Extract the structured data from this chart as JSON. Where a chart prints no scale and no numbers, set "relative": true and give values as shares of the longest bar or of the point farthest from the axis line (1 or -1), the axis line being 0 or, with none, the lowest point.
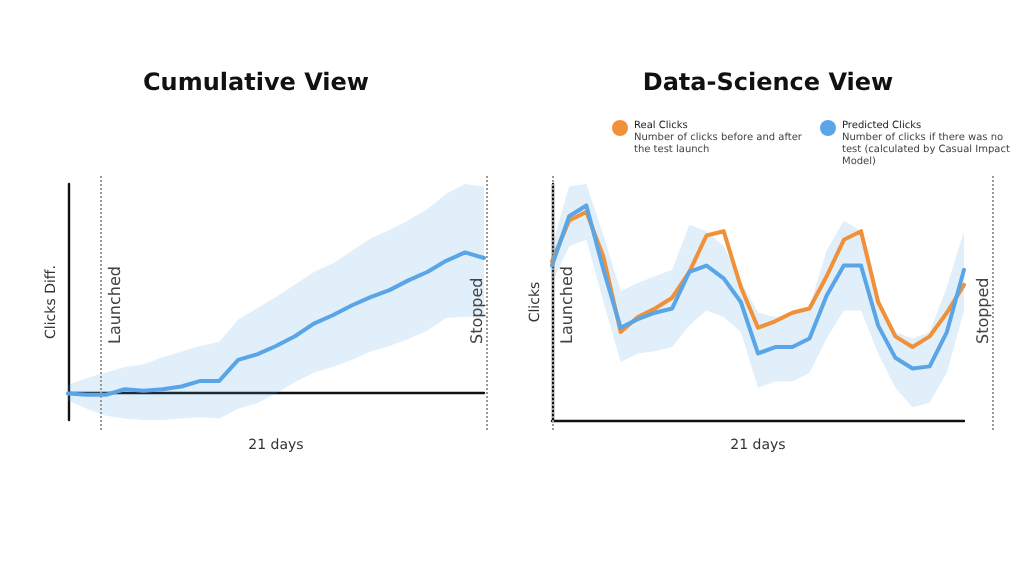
{
  "chart_data": [
    {
      "type": "line",
      "title": "Cumulative View",
      "xlabel": "21 days",
      "ylabel": "Clicks Diff.",
      "relative": true,
      "marker": "none",
      "line_style": "solid",
      "grid": false,
      "legend": false,
      "annotations": [
        "Launched",
        "Stopped"
      ],
      "categories": [
        null,
        null,
        null,
        null,
        null,
        null,
        null,
        null,
        null,
        null,
        null,
        null,
        null,
        null,
        null,
        null,
        null,
        null,
        null,
        null,
        null,
        null,
        null
      ],
      "series": [
        {
          "color": "#5aa5e6",
          "values": [
            -0.01,
            -0.02,
            -0.02,
            0.02,
            0.01,
            0.02,
            0.04,
            0.08,
            0.08,
            0.23,
            0.27,
            0.33,
            0.4,
            0.49,
            0.55,
            0.62,
            0.68,
            0.73,
            0.8,
            0.86,
            0.94,
            1.0,
            0.96
          ],
          "lower": [
            -0.06,
            -0.12,
            -0.17,
            -0.19,
            -0.2,
            -0.2,
            -0.19,
            -0.18,
            -0.19,
            -0.12,
            -0.08,
            -0.01,
            0.07,
            0.14,
            0.18,
            0.23,
            0.29,
            0.33,
            0.38,
            0.44,
            0.53,
            0.54,
            0.53
          ],
          "upper": [
            0.05,
            0.1,
            0.14,
            0.18,
            0.2,
            0.25,
            0.29,
            0.33,
            0.36,
            0.52,
            0.6,
            0.68,
            0.77,
            0.86,
            0.92,
            1.01,
            1.1,
            1.16,
            1.23,
            1.31,
            1.42,
            1.49,
            1.47
          ]
        }
      ]
    },
    {
      "type": "line",
      "title": "Data-Science View",
      "xlabel": "21 days",
      "ylabel": "Clicks",
      "relative": true,
      "marker": "none",
      "line_style": "solid",
      "grid": false,
      "legend": "top right",
      "annotations": [
        "Launched",
        "Stopped",
        "Number of clicks before and after the test launch",
        "Number of clicks if there was no test (calculated by Casual Impact Model)"
      ],
      "categories": [
        null,
        null,
        null,
        null,
        null,
        null,
        null,
        null,
        null,
        null,
        null,
        null,
        null,
        null,
        null,
        null,
        null,
        null,
        null,
        null,
        null,
        null,
        null,
        null,
        null
      ],
      "series": [
        {
          "name": "Real Clicks",
          "color": "#f0913a",
          "values": [
            0.74,
            0.93,
            0.97,
            0.76,
            0.41,
            0.48,
            0.52,
            0.57,
            0.69,
            0.86,
            0.88,
            0.62,
            0.43,
            0.46,
            0.5,
            0.52,
            0.67,
            0.84,
            0.88,
            0.55,
            0.39,
            0.34,
            0.39,
            0.5,
            0.63
          ]
        },
        {
          "name": "Predicted Clicks",
          "color": "#5aa5e6",
          "values": [
            0.72,
            0.95,
            1.0,
            0.7,
            0.43,
            0.47,
            0.5,
            0.52,
            0.69,
            0.72,
            0.66,
            0.55,
            0.31,
            0.34,
            0.34,
            0.38,
            0.58,
            0.72,
            0.72,
            0.44,
            0.29,
            0.24,
            0.25,
            0.41,
            0.7
          ],
          "lower": [
            0.64,
            0.81,
            0.84,
            0.55,
            0.27,
            0.31,
            0.32,
            0.34,
            0.44,
            0.51,
            0.48,
            0.41,
            0.15,
            0.18,
            0.18,
            0.22,
            0.38,
            0.51,
            0.51,
            0.31,
            0.15,
            0.06,
            0.08,
            0.22,
            0.51
          ],
          "upper": [
            0.81,
            1.09,
            1.1,
            0.86,
            0.6,
            0.64,
            0.67,
            0.7,
            0.91,
            0.88,
            0.81,
            0.65,
            0.5,
            0.48,
            0.5,
            0.53,
            0.79,
            0.93,
            0.88,
            0.55,
            0.41,
            0.38,
            0.41,
            0.62,
            0.88
          ]
        }
      ]
    }
  ]
}
